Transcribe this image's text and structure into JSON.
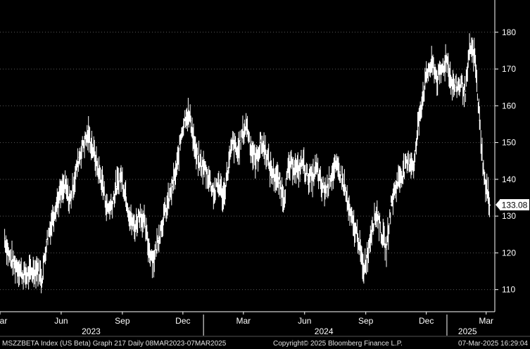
{
  "chart_data": {
    "type": "line",
    "style": "high-low bars",
    "title": "",
    "xlabel": "",
    "ylabel": "",
    "ylim": [
      104,
      188
    ],
    "y_ticks": [
      110,
      120,
      130,
      140,
      150,
      160,
      170,
      180
    ],
    "y_axis_side": "right",
    "grid": true,
    "grid_style": "dotted horizontal",
    "x_month_labels": [
      "Mar",
      "Jun",
      "Sep",
      "Dec",
      "Mar",
      "Jun",
      "Sep",
      "Dec",
      "Mar"
    ],
    "x_month_dates": [
      "2023-03-01",
      "2023-06-01",
      "2023-09-01",
      "2023-12-01",
      "2024-03-01",
      "2024-06-01",
      "2024-09-01",
      "2024-12-01",
      "2025-03-01"
    ],
    "x_year_labels": [
      "2023",
      "2024",
      "2025"
    ],
    "x_year_dates": [
      "2023-07-16",
      "2024-06-30",
      "2025-02-01"
    ],
    "x_year_separators": [
      "2024-01-01",
      "2025-01-01"
    ],
    "last_value": "133.08",
    "last_value_colors": {
      "background": "#ffffff",
      "text": "#000000"
    },
    "line_color": "#ffffff",
    "series": [
      {
        "x": [
          "2023-03-08",
          "2023-03-15",
          "2023-03-22",
          "2023-03-29",
          "2023-04-05",
          "2023-04-12",
          "2023-04-19",
          "2023-04-26",
          "2023-05-03",
          "2023-05-10",
          "2023-05-17",
          "2023-05-24",
          "2023-05-31",
          "2023-06-07",
          "2023-06-14",
          "2023-06-21",
          "2023-06-28",
          "2023-07-05",
          "2023-07-12",
          "2023-07-19",
          "2023-07-26",
          "2023-08-02",
          "2023-08-09",
          "2023-08-16",
          "2023-08-23",
          "2023-08-30",
          "2023-09-06",
          "2023-09-13",
          "2023-09-20",
          "2023-09-27",
          "2023-10-04",
          "2023-10-11",
          "2023-10-18",
          "2023-10-25",
          "2023-11-01",
          "2023-11-08",
          "2023-11-15",
          "2023-11-22",
          "2023-11-29",
          "2023-12-06",
          "2023-12-13",
          "2023-12-20",
          "2023-12-27",
          "2024-01-03",
          "2024-01-10",
          "2024-01-17",
          "2024-01-24",
          "2024-01-31",
          "2024-02-07",
          "2024-02-14",
          "2024-02-21",
          "2024-02-28",
          "2024-03-06",
          "2024-03-13",
          "2024-03-20",
          "2024-03-27",
          "2024-04-03",
          "2024-04-10",
          "2024-04-17",
          "2024-04-24",
          "2024-05-01",
          "2024-05-08",
          "2024-05-15",
          "2024-05-22",
          "2024-05-29",
          "2024-06-05",
          "2024-06-12",
          "2024-06-19",
          "2024-06-26",
          "2024-07-03",
          "2024-07-10",
          "2024-07-17",
          "2024-07-24",
          "2024-07-31",
          "2024-08-07",
          "2024-08-14",
          "2024-08-21",
          "2024-08-28",
          "2024-09-04",
          "2024-09-11",
          "2024-09-18",
          "2024-09-25",
          "2024-10-02",
          "2024-10-09",
          "2024-10-16",
          "2024-10-23",
          "2024-10-30",
          "2024-11-06",
          "2024-11-13",
          "2024-11-20",
          "2024-11-27",
          "2024-12-04",
          "2024-12-11",
          "2024-12-18",
          "2024-12-25",
          "2025-01-01",
          "2025-01-08",
          "2025-01-15",
          "2025-01-22",
          "2025-01-29",
          "2025-02-05",
          "2025-02-12",
          "2025-02-19",
          "2025-02-26",
          "2025-03-07"
        ],
        "y": [
          124,
          119,
          117,
          116,
          114,
          114,
          115,
          116,
          113,
          123,
          128,
          133,
          136,
          138,
          134,
          140,
          146,
          150,
          152,
          148,
          143,
          139,
          132,
          133,
          138,
          141,
          136,
          129,
          127,
          131,
          128,
          121,
          118,
          124,
          129,
          133,
          138,
          143,
          153,
          158,
          156,
          147,
          144,
          143,
          140,
          136,
          139,
          135,
          143,
          150,
          147,
          152,
          155,
          148,
          145,
          150,
          148,
          143,
          141,
          139,
          135,
          143,
          144,
          142,
          145,
          141,
          140,
          143,
          138,
          137,
          141,
          143,
          142,
          138,
          131,
          127,
          124,
          115,
          120,
          128,
          131,
          125,
          121,
          133,
          138,
          141,
          143,
          145,
          144,
          157,
          164,
          170,
          171,
          167,
          170,
          173,
          166,
          165,
          166,
          164,
          176,
          173,
          156,
          140,
          133
        ]
      }
    ]
  },
  "footer": {
    "left": "MSZZBETA Index (US Beta) Graph 217  Daily 08MAR2023-07MAR2025",
    "center": "Copyright© 2025 Bloomberg Finance L.P.",
    "right": "07-Mar-2025 16:29:04"
  }
}
